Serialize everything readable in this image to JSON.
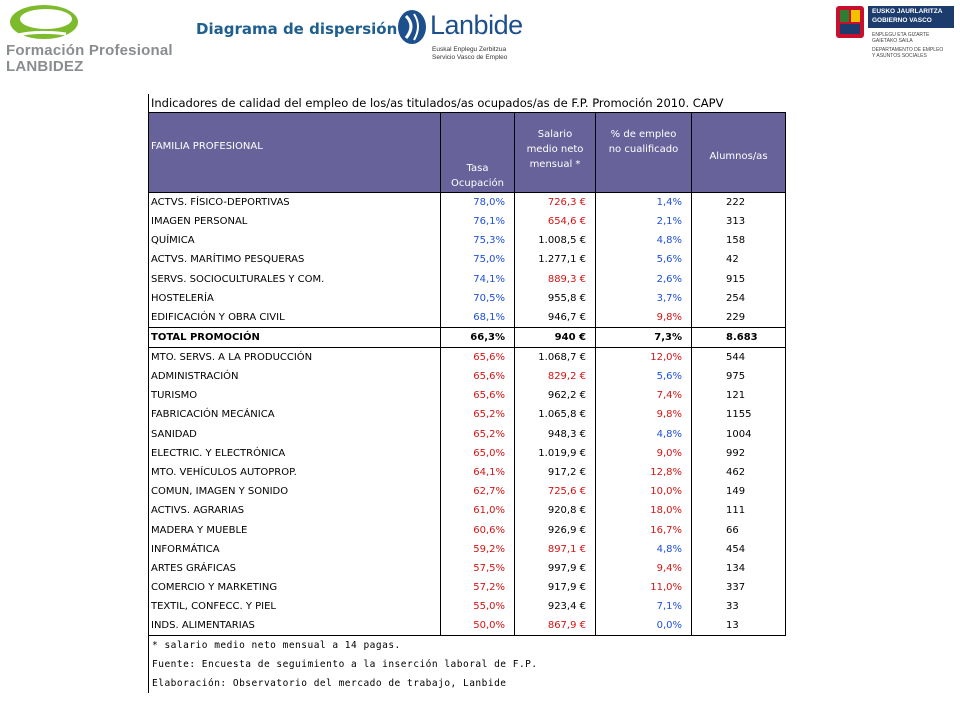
{
  "header": {
    "fp_logo_line1": "Formación Profesional",
    "fp_logo_line2": "LANBIDEZ",
    "page_title": "Diagrama de dispersión",
    "lanbide_word": "Lanbide",
    "lanbide_sub1": "Euskal Enplegu Zerbitzua",
    "lanbide_sub2": "Servicio Vasco de Empleo",
    "gv_line1": "EUSKO JAURLARITZA",
    "gv_line2": "GOBIERNO VASCO",
    "gv_s1": "ENPLEGU ETA GIZARTE",
    "gv_s2": "GAIETAKO SAILA",
    "gv_s3": "DEPARTAMENTO DE EMPLEO",
    "gv_s4": "Y ASUNTOS SOCIALES"
  },
  "table": {
    "title": "Indicadores de calidad del empleo de los/as titulados/as ocupados/as de F.P. Promoción 2010. CAPV",
    "headers": {
      "familia": "FAMILIA PROFESIONAL",
      "tasa_1": "Tasa",
      "tasa_2": "Ocupación",
      "salario_1": "Salario",
      "salario_2": "medio neto",
      "salario_3": "mensual *",
      "empleo_1": "% de empleo",
      "empleo_2": "no cualificado",
      "alumnos": "Alumnos/as"
    },
    "rows_top": [
      {
        "familia": "ACTVS. FÍSICO-DEPORTIVAS",
        "tasa": "78,0%",
        "salario": "726,3 €",
        "empleo": "1,4%",
        "alumnos": "222",
        "tc": "blue",
        "sc": "red",
        "ec": "blue"
      },
      {
        "familia": "IMAGEN PERSONAL",
        "tasa": "76,1%",
        "salario": "654,6 €",
        "empleo": "2,1%",
        "alumnos": "313",
        "tc": "blue",
        "sc": "red",
        "ec": "blue"
      },
      {
        "familia": "QUÍMICA",
        "tasa": "75,3%",
        "salario": "1.008,5 €",
        "empleo": "4,8%",
        "alumnos": "158",
        "tc": "blue",
        "sc": "black",
        "ec": "blue"
      },
      {
        "familia": "ACTVS. MARÍTIMO PESQUERAS",
        "tasa": "75,0%",
        "salario": "1.277,1 €",
        "empleo": "5,6%",
        "alumnos": "42",
        "tc": "blue",
        "sc": "black",
        "ec": "blue"
      },
      {
        "familia": "SERVS. SOCIOCULTURALES Y COM.",
        "tasa": "74,1%",
        "salario": "889,3 €",
        "empleo": "2,6%",
        "alumnos": "915",
        "tc": "blue",
        "sc": "red",
        "ec": "blue"
      },
      {
        "familia": "HOSTELERÍA",
        "tasa": "70,5%",
        "salario": "955,8 €",
        "empleo": "3,7%",
        "alumnos": "254",
        "tc": "blue",
        "sc": "black",
        "ec": "blue"
      },
      {
        "familia": "EDIFICACIÓN Y OBRA CIVIL",
        "tasa": "68,1%",
        "salario": "946,7 €",
        "empleo": "9,8%",
        "alumnos": "229",
        "tc": "blue",
        "sc": "black",
        "ec": "red"
      }
    ],
    "total": {
      "familia": "TOTAL PROMOCIÓN",
      "tasa": "66,3%",
      "salario": "940 €",
      "empleo": "7,3%",
      "alumnos": "8.683"
    },
    "rows_bottom": [
      {
        "familia": "MTO. SERVS. A LA PRODUCCIÓN",
        "tasa": "65,6%",
        "salario": "1.068,7 €",
        "empleo": "12,0%",
        "alumnos": "544",
        "tc": "red",
        "sc": "black",
        "ec": "red"
      },
      {
        "familia": "ADMINISTRACIÓN",
        "tasa": "65,6%",
        "salario": "829,2 €",
        "empleo": "5,6%",
        "alumnos": "975",
        "tc": "red",
        "sc": "red",
        "ec": "blue"
      },
      {
        "familia": "TURISMO",
        "tasa": "65,6%",
        "salario": "962,2 €",
        "empleo": "7,4%",
        "alumnos": "121",
        "tc": "red",
        "sc": "black",
        "ec": "red"
      },
      {
        "familia": "FABRICACIÓN MECÁNICA",
        "tasa": "65,2%",
        "salario": "1.065,8 €",
        "empleo": "9,8%",
        "alumnos": "1155",
        "tc": "red",
        "sc": "black",
        "ec": "red"
      },
      {
        "familia": "SANIDAD",
        "tasa": "65,2%",
        "salario": "948,3 €",
        "empleo": "4,8%",
        "alumnos": "1004",
        "tc": "red",
        "sc": "black",
        "ec": "blue"
      },
      {
        "familia": "ELECTRIC. Y ELECTRÓNICA",
        "tasa": "65,0%",
        "salario": "1.019,9 €",
        "empleo": "9,0%",
        "alumnos": "992",
        "tc": "red",
        "sc": "black",
        "ec": "red"
      },
      {
        "familia": "MTO. VEHÍCULOS AUTOPROP.",
        "tasa": "64,1%",
        "salario": "917,2 €",
        "empleo": "12,8%",
        "alumnos": "462",
        "tc": "red",
        "sc": "black",
        "ec": "red"
      },
      {
        "familia": "COMUN, IMAGEN Y SONIDO",
        "tasa": "62,7%",
        "salario": "725,6 €",
        "empleo": "10,0%",
        "alumnos": "149",
        "tc": "red",
        "sc": "red",
        "ec": "red"
      },
      {
        "familia": "ACTIVS. AGRARIAS",
        "tasa": "61,0%",
        "salario": "920,8 €",
        "empleo": "18,0%",
        "alumnos": "111",
        "tc": "red",
        "sc": "black",
        "ec": "red"
      },
      {
        "familia": "MADERA Y MUEBLE",
        "tasa": "60,6%",
        "salario": "926,9 €",
        "empleo": "16,7%",
        "alumnos": "66",
        "tc": "red",
        "sc": "black",
        "ec": "red"
      },
      {
        "familia": "INFORMÁTICA",
        "tasa": "59,2%",
        "salario": "897,1 €",
        "empleo": "4,8%",
        "alumnos": "454",
        "tc": "red",
        "sc": "red",
        "ec": "blue"
      },
      {
        "familia": "ARTES GRÁFICAS",
        "tasa": "57,5%",
        "salario": "997,9 €",
        "empleo": "9,4%",
        "alumnos": "134",
        "tc": "red",
        "sc": "black",
        "ec": "red"
      },
      {
        "familia": "COMERCIO Y MARKETING",
        "tasa": "57,2%",
        "salario": "917,9 €",
        "empleo": "11,0%",
        "alumnos": "337",
        "tc": "red",
        "sc": "black",
        "ec": "red"
      },
      {
        "familia": "TEXTIL, CONFECC. Y PIEL",
        "tasa": "55,0%",
        "salario": "923,4 €",
        "empleo": "7,1%",
        "alumnos": "33",
        "tc": "red",
        "sc": "black",
        "ec": "blue"
      },
      {
        "familia": "INDS. ALIMENTARIAS",
        "tasa": "50,0%",
        "salario": "867,9 €",
        "empleo": "0,0%",
        "alumnos": "13",
        "tc": "red",
        "sc": "red",
        "ec": "blue"
      }
    ],
    "notes": [
      "* salario medio neto mensual a 14 pagas.",
      "Fuente: Encuesta de seguimiento a la inserción laboral de F.P.",
      "Elaboración: Observatorio del mercado de trabajo, Lanbide"
    ]
  },
  "colors": {
    "header_bg": "#68629a",
    "blue_value": "#1f4fd8",
    "red_value": "#d21414",
    "title": "#1f5f8f"
  }
}
